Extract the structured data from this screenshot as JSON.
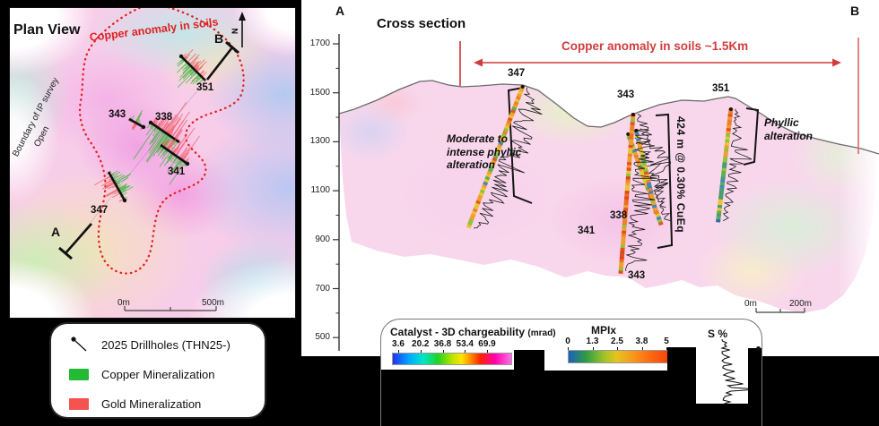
{
  "plan_view": {
    "title": "Plan View",
    "anomaly_label": "Copper anomaly in soils",
    "survey_note": "Boundary of IP survey",
    "survey_note2": "Open",
    "compass_label": "N",
    "section_markers": {
      "a": "A",
      "b": "B"
    },
    "scale_bar": {
      "start": "0m",
      "end": "500m"
    },
    "drillhole_labels": [
      "351",
      "343",
      "338",
      "341",
      "347"
    ],
    "legend": {
      "items": [
        {
          "type": "drillhole-symbol",
          "label": "2025 Drillholes (THN25-)",
          "color": "#111111"
        },
        {
          "type": "swatch",
          "label": "Copper Mineralization",
          "color": "#22bb33"
        },
        {
          "type": "swatch",
          "label": "Gold Mineralization",
          "color": "#f4534f"
        }
      ]
    }
  },
  "cross_section": {
    "title": "Cross section",
    "section_markers": {
      "a": "A",
      "b": "B"
    },
    "anomaly_label": "Copper anomaly in soils  ~1.5Km",
    "elevation_ticks": [
      "1700",
      "1500",
      "1300",
      "1100",
      "900",
      "700",
      "500"
    ],
    "drillhole_labels": {
      "347": "347",
      "341": "341",
      "338": "338",
      "343_top": "343",
      "343_toe": "343",
      "351": "351"
    },
    "annotations": {
      "left_alteration": [
        "Moderate to",
        "intense phyllic",
        "alteration"
      ],
      "intercept": "424 m @ 0.30% CuEq",
      "right_alteration": [
        "Phyllic",
        "alteration"
      ]
    },
    "scale_bar": {
      "start": "0m",
      "end": "200m"
    }
  },
  "legend_panel": {
    "chargeability": {
      "title": "Catalyst - 3D chargeability",
      "unit": "(mrad)",
      "ticks": [
        "3.6",
        "20.2",
        "36.8",
        "53.4",
        "69.9"
      ]
    },
    "mpix": {
      "title": "MPIx",
      "ticks": [
        "0",
        "1.3",
        "2.5",
        "3.8",
        "5"
      ]
    },
    "sulfur": {
      "title": "S %"
    }
  },
  "colors": {
    "anomaly_red": "#d13c3c",
    "boundary_red": "#e51f1f",
    "copper_green": "#22bb33",
    "gold_red": "#f4534f"
  }
}
